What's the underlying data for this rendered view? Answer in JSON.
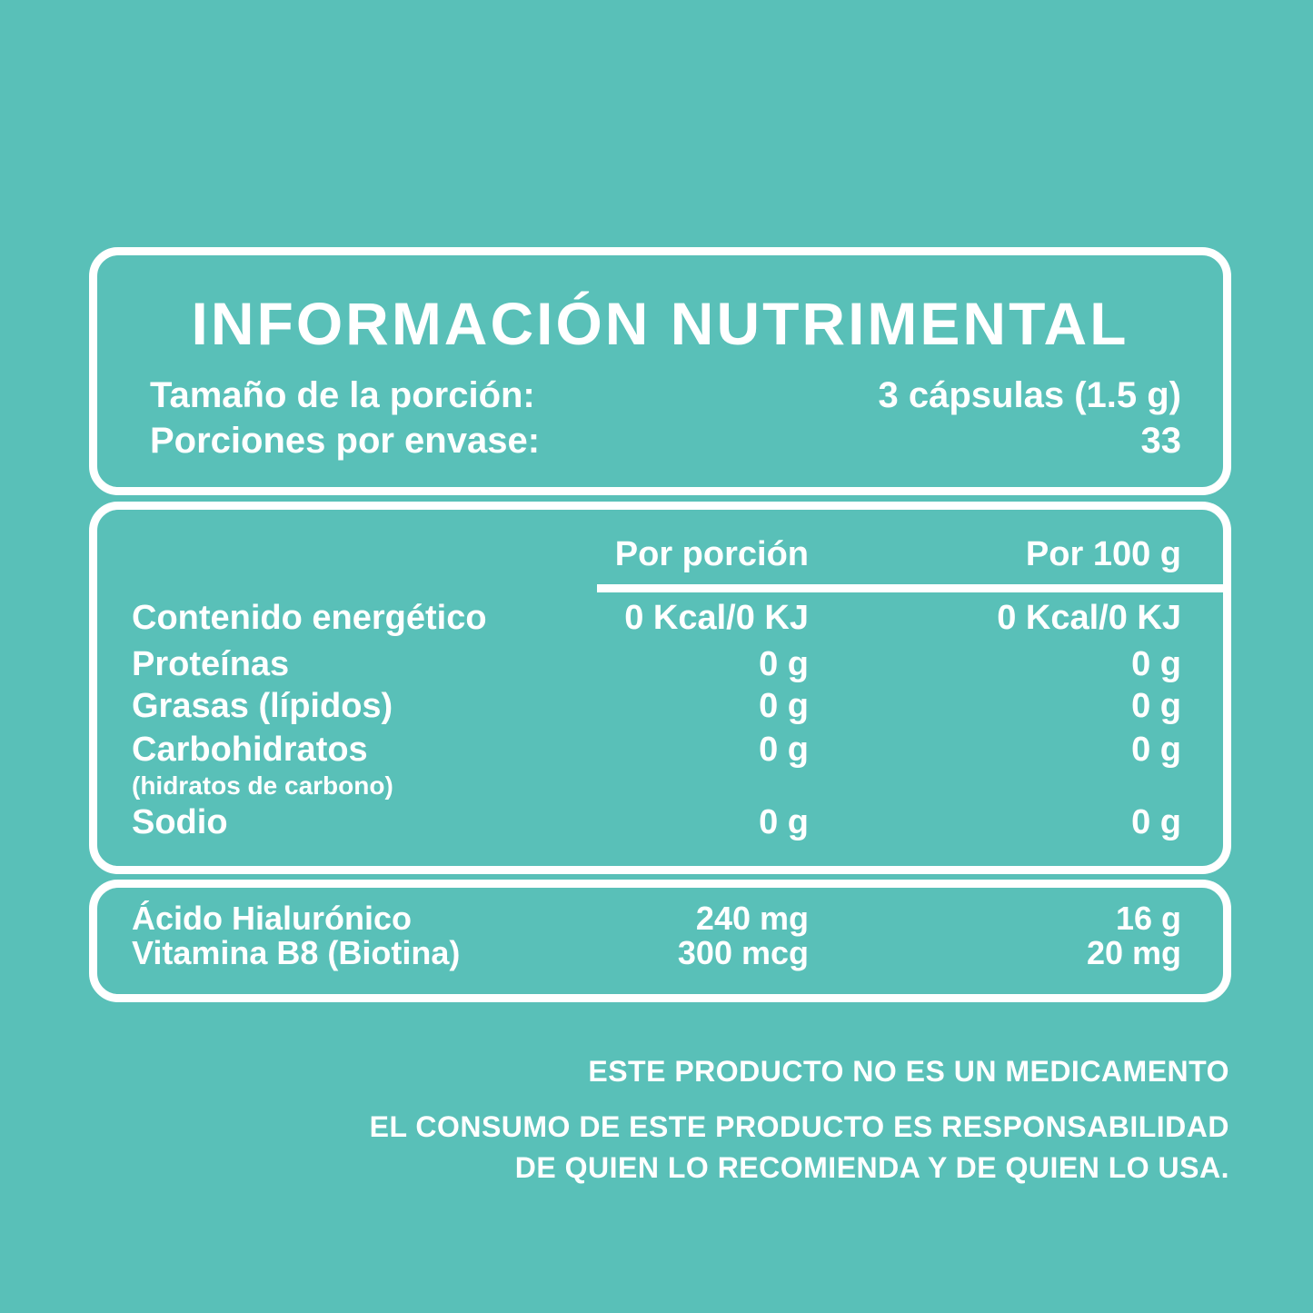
{
  "colors": {
    "background": "#59C0B8",
    "text": "#FFFFFF"
  },
  "title": "INFORMACIÓN NUTRIMENTAL",
  "serving_info": {
    "rows": [
      {
        "label": "Tamaño de la porción:",
        "value": "3 cápsulas (1.5 g)"
      },
      {
        "label": "Porciones por envase:",
        "value": "33"
      }
    ]
  },
  "nutrition_table": {
    "columns": [
      "Por porción",
      "Por 100 g"
    ],
    "rows": [
      {
        "label": "Contenido energético",
        "per_serving": "0 Kcal/0 KJ",
        "per_100g": "0 Kcal/0 KJ"
      },
      {
        "label": "Proteínas",
        "per_serving": "0 g",
        "per_100g": "0 g"
      },
      {
        "label": "Grasas (lípidos)",
        "per_serving": "0 g",
        "per_100g": "0 g"
      },
      {
        "label": "Carbohidratos",
        "sublabel": "(hidratos de carbono)",
        "per_serving": "0 g",
        "per_100g": "0 g"
      },
      {
        "label": "Sodio",
        "per_serving": "0 g",
        "per_100g": "0 g"
      }
    ]
  },
  "actives_table": {
    "rows": [
      {
        "label": "Ácido Hialurónico",
        "per_serving": "240 mg",
        "per_100g": "16 g"
      },
      {
        "label": "Vitamina B8 (Biotina)",
        "per_serving": "300 mcg",
        "per_100g": "20 mg"
      }
    ]
  },
  "disclaimer": {
    "lines": [
      "ESTE PRODUCTO NO ES UN MEDICAMENTO",
      "EL CONSUMO DE ESTE PRODUCTO ES RESPONSABILIDAD",
      "DE QUIEN LO RECOMIENDA Y DE QUIEN LO USA."
    ]
  }
}
